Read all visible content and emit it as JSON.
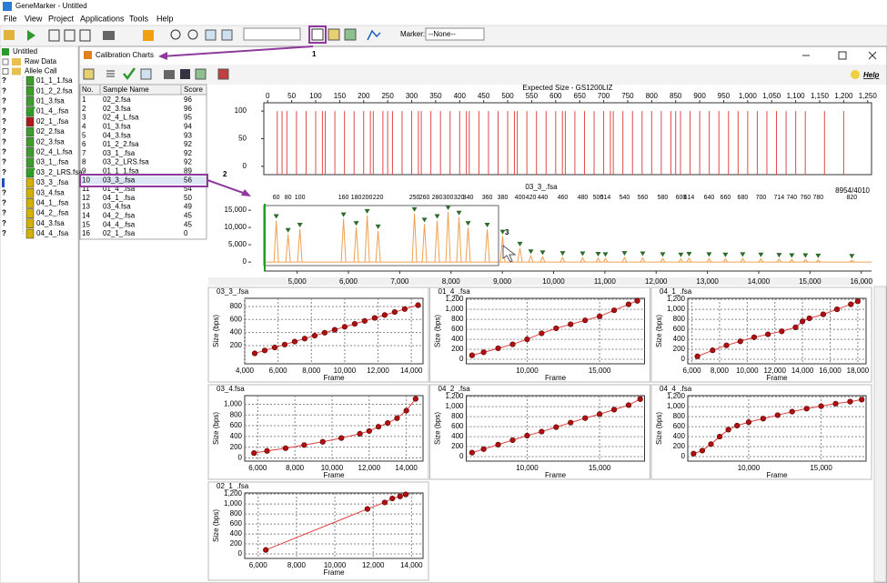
{
  "app": {
    "title": "GeneMarker - Untitled",
    "menu": [
      "File",
      "View",
      "Project",
      "Applications",
      "Tools",
      "Help"
    ],
    "marker_label": "Marker:",
    "marker_value": "--None--"
  },
  "annotations": [
    "1",
    "2",
    "3"
  ],
  "tree": {
    "root": "Untitled",
    "folders": [
      "Raw Data",
      "Allele Call"
    ],
    "files": [
      {
        "name": "01_1_1.fsa",
        "status": "?",
        "color": "#3c9c2c"
      },
      {
        "name": "01_2_2.fsa",
        "status": "?",
        "color": "#3c9c2c"
      },
      {
        "name": "01_3.fsa",
        "status": "?",
        "color": "#3c9c2c"
      },
      {
        "name": "01_4_.fsa",
        "status": "?",
        "color": "#3c9c2c",
        "checked": true
      },
      {
        "name": "02_1_.fsa",
        "status": "?",
        "color": "#b01818"
      },
      {
        "name": "02_2.fsa",
        "status": "?",
        "color": "#3c9c2c"
      },
      {
        "name": "02_3.fsa",
        "status": "?",
        "color": "#3c9c2c"
      },
      {
        "name": "02_4_L.fsa",
        "status": "?",
        "color": "#3c9c2c"
      },
      {
        "name": "03_1_.fsa",
        "status": "?",
        "color": "#3c9c2c"
      },
      {
        "name": "03_2_LRS.fsa",
        "status": "?",
        "color": "#3c9c2c",
        "checked": true
      },
      {
        "name": "03_3_.fsa",
        "color": "#d4b000",
        "selected": true
      },
      {
        "name": "03_4.fsa",
        "status": "?",
        "color": "#d4b000"
      },
      {
        "name": "04_1_.fsa",
        "status": "?",
        "color": "#d4b000"
      },
      {
        "name": "04_2_.fsa",
        "status": "?",
        "color": "#d4b000"
      },
      {
        "name": "04_3.fsa",
        "status": "?",
        "color": "#d4b000"
      },
      {
        "name": "04_4_.fsa",
        "status": "?",
        "color": "#d4b000"
      }
    ]
  },
  "window": {
    "title": "Calibration Charts",
    "help": "Help"
  },
  "table": {
    "columns": [
      "No.",
      "Sample Name",
      "Score"
    ],
    "rows": [
      [
        1,
        "02_2.fsa",
        96
      ],
      [
        2,
        "02_3.fsa",
        96
      ],
      [
        3,
        "02_4_L.fsa",
        95
      ],
      [
        4,
        "01_3.fsa",
        94
      ],
      [
        5,
        "04_3.fsa",
        93
      ],
      [
        6,
        "01_2_2.fsa",
        92
      ],
      [
        7,
        "03_1_.fsa",
        92
      ],
      [
        8,
        "03_2_LRS.fsa",
        92
      ],
      [
        9,
        "01_1_1.fsa",
        89
      ],
      [
        10,
        "03_3_.fsa",
        56
      ],
      [
        11,
        "01_4_.fsa",
        54
      ],
      [
        12,
        "04_1_.fsa",
        50
      ],
      [
        13,
        "03_4.fsa",
        49
      ],
      [
        14,
        "04_2_.fsa",
        45
      ],
      [
        15,
        "04_4_.fsa",
        45
      ],
      [
        16,
        "02_1_.fsa",
        0
      ]
    ],
    "selected": 9
  },
  "chart_data": [
    {
      "type": "stem",
      "title": "Expected Size - GS1200LIZ",
      "color": "#e04848",
      "x": [
        20,
        30,
        40,
        60,
        80,
        100,
        114,
        120,
        140,
        160,
        180,
        200,
        214,
        220,
        240,
        250,
        260,
        280,
        300,
        314,
        320,
        340,
        360,
        380,
        400,
        414,
        420,
        440,
        460,
        480,
        500,
        514,
        520,
        540,
        560,
        580,
        600,
        614,
        620,
        640,
        660,
        680,
        700,
        714,
        720,
        740,
        760,
        780,
        800,
        820,
        840,
        850,
        860,
        880,
        900,
        920,
        940,
        960,
        980,
        1000,
        1020,
        1040,
        1060,
        1080,
        1100,
        1120,
        1160,
        1200
      ],
      "values": [
        100,
        100,
        100,
        100,
        100,
        100,
        100,
        100,
        100,
        100,
        100,
        100,
        100,
        100,
        100,
        100,
        100,
        100,
        100,
        100,
        100,
        100,
        100,
        100,
        100,
        100,
        100,
        100,
        100,
        100,
        100,
        100,
        100,
        100,
        100,
        100,
        100,
        100,
        100,
        100,
        100,
        100,
        100,
        100,
        100,
        100,
        100,
        100,
        100,
        100,
        100,
        100,
        100,
        100,
        100,
        100,
        100,
        100,
        100,
        100,
        100,
        100,
        100,
        100,
        100,
        100,
        100,
        100
      ],
      "xlim": [
        -8,
        1258
      ],
      "ylim": [
        -15,
        115
      ],
      "xticks": [
        0,
        50,
        100,
        150,
        200,
        250,
        300,
        350,
        400,
        450,
        500,
        550,
        600,
        650,
        700,
        750,
        800,
        850,
        900,
        950,
        {
          "value": 1000,
          "label": "1,000"
        },
        {
          "value": 1050,
          "label": "1,050"
        },
        {
          "value": 1100,
          "label": "1,100"
        },
        {
          "value": 1150,
          "label": "1,150"
        },
        {
          "value": 1200,
          "label": "1,200"
        },
        {
          "value": 1250,
          "label": "1,250"
        }
      ],
      "yticks": [
        0,
        50,
        100
      ]
    },
    {
      "type": "trace",
      "title": "03_3_.fsa",
      "note": "8954/4010",
      "color": "#f0a050",
      "marker_color": "#2e6a2a",
      "x": [
        4592,
        4823,
        5053,
        5904,
        6152,
        6365,
        6578,
        7287,
        7482,
        7730,
        7943,
        8156,
        8333,
        8706,
        9007,
        9344,
        9557,
        9787,
        10177,
        10567,
        10869,
        11011,
        11383,
        11738,
        12128,
        12482,
        12642,
        13032,
        13351,
        13688,
        14043,
        14397,
        14645,
        14911,
        15160,
        15816
      ],
      "values": [
        12000,
        8000,
        9500,
        12500,
        10000,
        13500,
        9000,
        14000,
        11000,
        12000,
        14500,
        13000,
        10000,
        9500,
        7500,
        4000,
        1800,
        1500,
        1300,
        1200,
        1100,
        1000,
        1300,
        1200,
        1000,
        900,
        1100,
        1000,
        900,
        1000,
        900,
        800,
        700,
        700,
        600,
        500
      ],
      "sizes": [
        60,
        80,
        100,
        160,
        180,
        200,
        220,
        250,
        260,
        280,
        300,
        320,
        340,
        360,
        380,
        400,
        420,
        440,
        460,
        480,
        500,
        514,
        540,
        560,
        580,
        600,
        614,
        640,
        660,
        680,
        700,
        714,
        740,
        760,
        780,
        820
      ],
      "xlim": [
        4350,
        16200
      ],
      "ylim": [
        -2600,
        17400
      ],
      "xticks": [
        {
          "value": 5000,
          "label": "5,000"
        },
        {
          "value": 6000,
          "label": "6,000"
        },
        {
          "value": 7000,
          "label": "7,000"
        },
        {
          "value": 8000,
          "label": "8,000"
        },
        {
          "value": 9000,
          "label": "9,000"
        },
        {
          "value": 10000,
          "label": "10,000"
        },
        {
          "value": 11000,
          "label": "11,000"
        },
        {
          "value": 12000,
          "label": "12,000"
        },
        {
          "value": 13000,
          "label": "13,000"
        },
        {
          "value": 14000,
          "label": "14,000"
        },
        {
          "value": 15000,
          "label": "15,000"
        },
        {
          "value": 16000,
          "label": "16,000"
        }
      ],
      "yticks": [
        0,
        {
          "value": 5000,
          "label": "5,000"
        },
        {
          "value": 10000,
          "label": "10,000"
        },
        {
          "value": 15000,
          "label": "15,000"
        }
      ]
    },
    {
      "type": "scatter",
      "title": "03_3_.fsa",
      "title_color": "#d02020",
      "xlabel": "Frame",
      "ylabel": "Size (bps)",
      "color": "#b01010",
      "line_color": "#e04040",
      "grid": true,
      "x": [
        4600,
        5200,
        5800,
        6400,
        7000,
        7600,
        8200,
        8800,
        9400,
        10000,
        10600,
        11200,
        11800,
        12400,
        13000,
        13600,
        14400
      ],
      "values": [
        80,
        125,
        171,
        216,
        261,
        307,
        352,
        397,
        442,
        488,
        533,
        578,
        624,
        669,
        714,
        760,
        820
      ],
      "xlim": [
        4000,
        14700
      ],
      "ylim": [
        -80,
        925
      ],
      "xticks": [
        {
          "value": 4000,
          "label": "4,000"
        },
        {
          "value": 6000,
          "label": "6,000"
        },
        {
          "value": 8000,
          "label": "8,000"
        },
        {
          "value": 10000,
          "label": "10,000"
        },
        {
          "value": 12000,
          "label": "12,000"
        },
        {
          "value": 14000,
          "label": "14,000"
        }
      ],
      "yticks": [
        200,
        400,
        600,
        800
      ]
    },
    {
      "type": "scatter",
      "title": "01_4_.fsa",
      "title_color": "#2030c0",
      "xlabel": "Frame",
      "ylabel": "Size (bps)",
      "color": "#b01010",
      "line_color": "#e04040",
      "grid": true,
      "x": [
        6200,
        7000,
        8000,
        9000,
        10000,
        11000,
        12000,
        13000,
        14000,
        15000,
        16000,
        17000,
        17600
      ],
      "values": [
        80,
        140,
        220,
        300,
        400,
        520,
        620,
        700,
        780,
        860,
        980,
        1100,
        1170
      ],
      "xlim": [
        5800,
        18100
      ],
      "ylim": [
        -90,
        1220
      ],
      "xticks": [
        {
          "value": 10000,
          "label": "10,000"
        },
        {
          "value": 15000,
          "label": "15,000"
        }
      ],
      "yticks": [
        0,
        200,
        400,
        600,
        800,
        {
          "value": 1000,
          "label": "1,000"
        },
        {
          "value": 1200,
          "label": "1,200"
        }
      ]
    },
    {
      "type": "scatter",
      "title": "04_1_.fsa",
      "title_color": "#2030c0",
      "xlabel": "Frame",
      "ylabel": "Size (bps)",
      "color": "#b01010",
      "line_color": "#e04040",
      "grid": true,
      "x": [
        6400,
        7500,
        8500,
        9500,
        10500,
        11500,
        12500,
        13500,
        14000,
        14500,
        15500,
        16500,
        17500,
        18000
      ],
      "values": [
        60,
        180,
        280,
        360,
        440,
        500,
        560,
        640,
        760,
        820,
        900,
        1000,
        1100,
        1160
      ],
      "xlim": [
        5700,
        18600
      ],
      "ylim": [
        -90,
        1220
      ],
      "xticks": [
        {
          "value": 6000,
          "label": "6,000"
        },
        {
          "value": 8000,
          "label": "8,000"
        },
        {
          "value": 10000,
          "label": "10,000"
        },
        {
          "value": 12000,
          "label": "12,000"
        },
        {
          "value": 14000,
          "label": "14,000"
        },
        {
          "value": 16000,
          "label": "16,000"
        },
        {
          "value": 18000,
          "label": "18,000"
        }
      ],
      "yticks": [
        0,
        200,
        400,
        600,
        800,
        {
          "value": 1000,
          "label": "1,000"
        },
        {
          "value": 1200,
          "label": "1,200"
        }
      ]
    },
    {
      "type": "scatter",
      "title": "03_4.fsa",
      "title_color": "#2030c0",
      "xlabel": "Frame",
      "ylabel": "Size (bps)",
      "color": "#b01010",
      "line_color": "#e04040",
      "grid": true,
      "x": [
        5800,
        6500,
        7500,
        8500,
        9500,
        10500,
        11500,
        12000,
        12500,
        13000,
        13500,
        14000,
        14500
      ],
      "values": [
        90,
        130,
        180,
        240,
        300,
        370,
        450,
        500,
        580,
        650,
        740,
        880,
        1100
      ],
      "xlim": [
        5300,
        14900
      ],
      "ylim": [
        -60,
        1160
      ],
      "xticks": [
        {
          "value": 6000,
          "label": "6,000"
        },
        {
          "value": 8000,
          "label": "8,000"
        },
        {
          "value": 10000,
          "label": "10,000"
        },
        {
          "value": 12000,
          "label": "12,000"
        },
        {
          "value": 14000,
          "label": "14,000"
        }
      ],
      "yticks": [
        0,
        200,
        400,
        600,
        800,
        {
          "value": 1000,
          "label": "1,000"
        }
      ]
    },
    {
      "type": "scatter",
      "title": "04_2_.fsa",
      "title_color": "#2030c0",
      "xlabel": "Frame",
      "ylabel": "Size (bps)",
      "color": "#b01010",
      "line_color": "#e04040",
      "grid": true,
      "x": [
        6200,
        7000,
        8000,
        9000,
        10000,
        11000,
        12000,
        13000,
        14000,
        15000,
        16000,
        17000,
        17800
      ],
      "values": [
        80,
        150,
        240,
        330,
        420,
        500,
        590,
        680,
        770,
        850,
        940,
        1030,
        1150
      ],
      "xlim": [
        5800,
        18100
      ],
      "ylim": [
        -90,
        1220
      ],
      "xticks": [
        {
          "value": 10000,
          "label": "10,000"
        },
        {
          "value": 15000,
          "label": "15,000"
        }
      ],
      "yticks": [
        0,
        200,
        400,
        600,
        800,
        {
          "value": 1000,
          "label": "1,000"
        },
        {
          "value": 1200,
          "label": "1,200"
        }
      ]
    },
    {
      "type": "scatter",
      "title": "04_4_.fsa",
      "title_color": "#2030c0",
      "xlabel": "Frame",
      "ylabel": "Size (bps)",
      "color": "#b01010",
      "line_color": "#e04040",
      "grid": true,
      "x": [
        6200,
        6800,
        7400,
        8000,
        8600,
        9200,
        10000,
        11000,
        12000,
        13000,
        14000,
        15000,
        16000,
        17000,
        17800
      ],
      "values": [
        60,
        120,
        250,
        400,
        540,
        620,
        690,
        760,
        830,
        900,
        960,
        1010,
        1060,
        1100,
        1140
      ],
      "xlim": [
        5800,
        18100
      ],
      "ylim": [
        -90,
        1220
      ],
      "xticks": [
        {
          "value": 10000,
          "label": "10,000"
        },
        {
          "value": 15000,
          "label": "15,000"
        }
      ],
      "yticks": [
        0,
        200,
        400,
        600,
        800,
        {
          "value": 1000,
          "label": "1,000"
        },
        {
          "value": 1200,
          "label": "1,200"
        }
      ]
    },
    {
      "type": "scatter",
      "title": "02_1_.fsa",
      "title_color": "#2030c0",
      "xlabel": "Frame",
      "ylabel": "Size (bps)",
      "color": "#b01010",
      "line_color": "#e04040",
      "grid": true,
      "x": [
        6400,
        11700,
        12600,
        13000,
        13400,
        13700
      ],
      "values": [
        80,
        900,
        1030,
        1110,
        1150,
        1190
      ],
      "xlim": [
        5300,
        14600
      ],
      "ylim": [
        -90,
        1220
      ],
      "xticks": [
        {
          "value": 6000,
          "label": "6,000"
        },
        {
          "value": 8000,
          "label": "8,000"
        },
        {
          "value": 10000,
          "label": "10,000"
        },
        {
          "value": 12000,
          "label": "12,000"
        },
        {
          "value": 14000,
          "label": "14,000"
        }
      ],
      "yticks": [
        0,
        200,
        400,
        600,
        800,
        {
          "value": 1000,
          "label": "1,000"
        },
        {
          "value": 1200,
          "label": "1,200"
        }
      ]
    }
  ]
}
